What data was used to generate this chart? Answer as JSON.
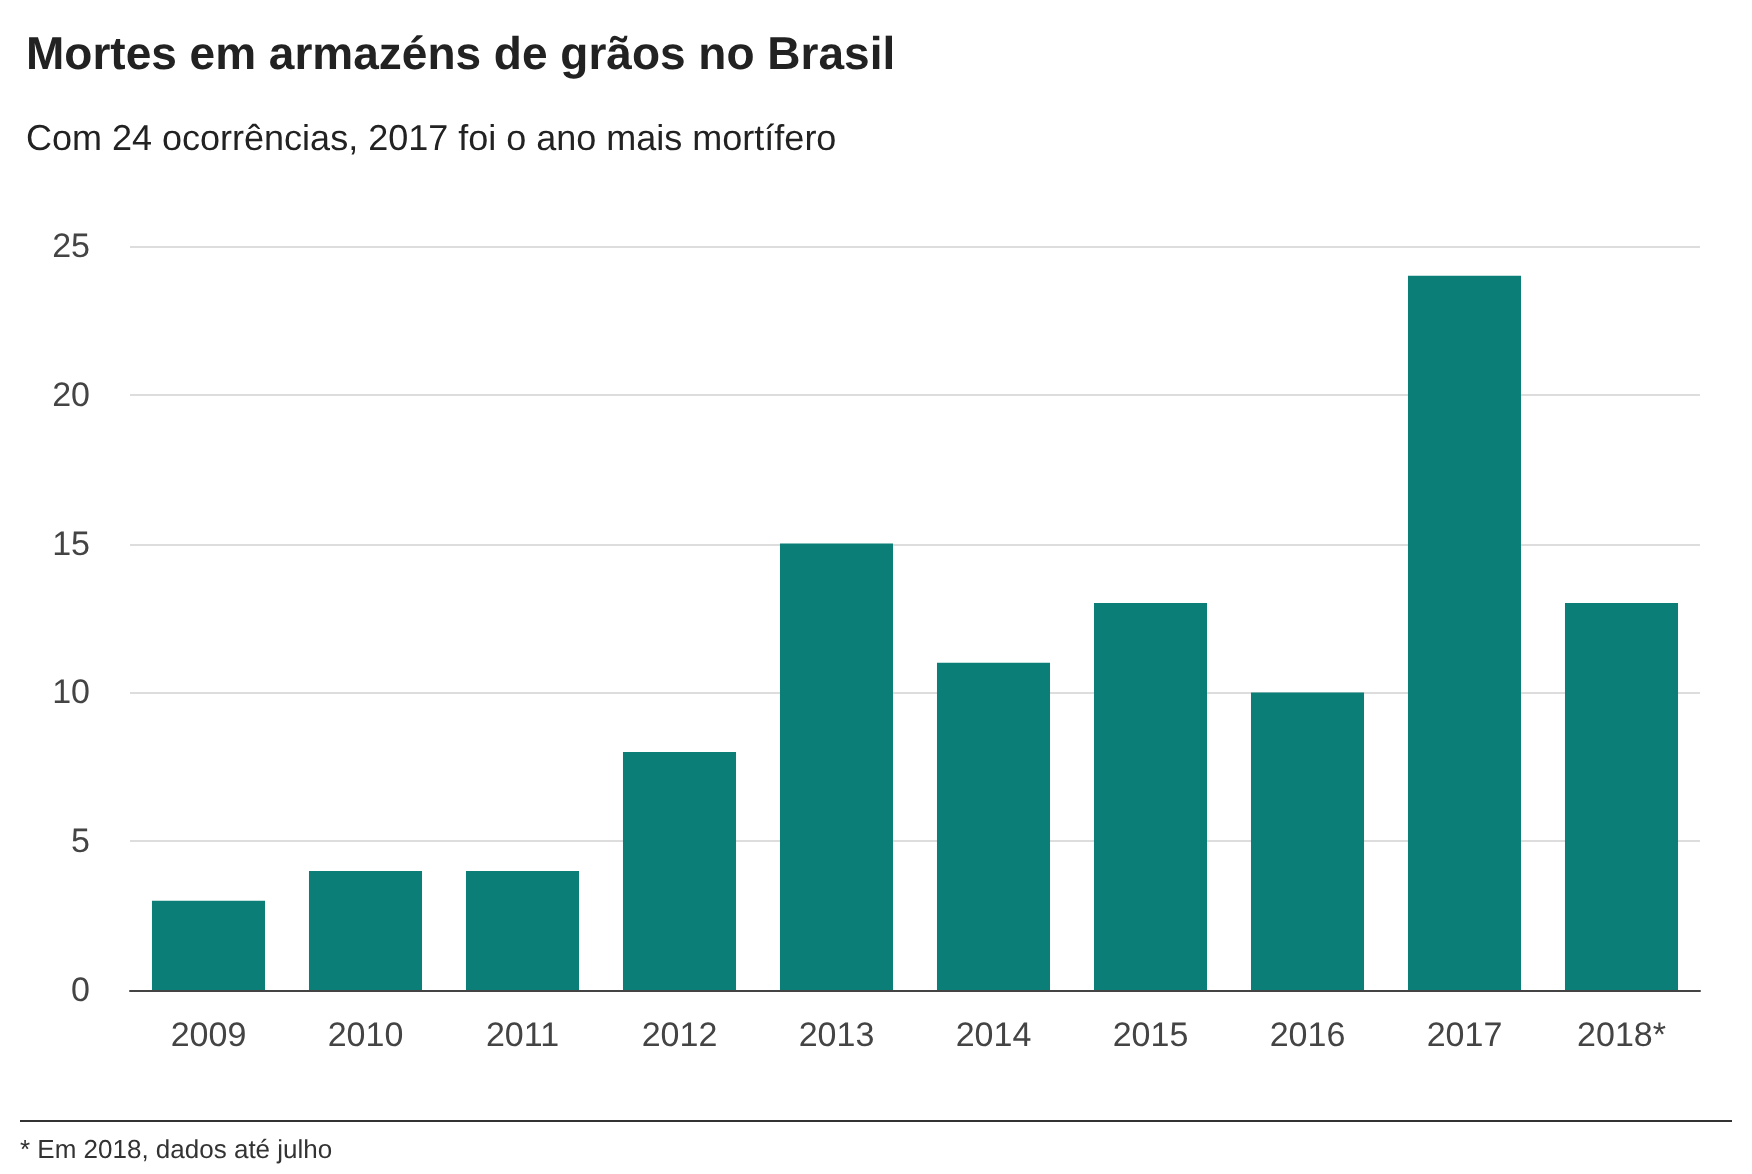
{
  "chart_data": {
    "type": "bar",
    "title": "Mortes em armazéns de grãos no Brasil",
    "subtitle": "Com 24 ocorrências, 2017 foi o ano mais mortífero",
    "categories": [
      "2009",
      "2010",
      "2011",
      "2012",
      "2013",
      "2014",
      "2015",
      "2016",
      "2017",
      "2018*"
    ],
    "values": [
      3,
      4,
      4,
      8,
      15,
      11,
      13,
      10,
      24,
      13
    ],
    "color": "#0b7f77",
    "ylim": [
      0,
      25
    ],
    "yticks": [
      0,
      5,
      10,
      15,
      20,
      25
    ],
    "grid": "y",
    "annotations": [
      "* Em 2018, dados até julho"
    ]
  }
}
